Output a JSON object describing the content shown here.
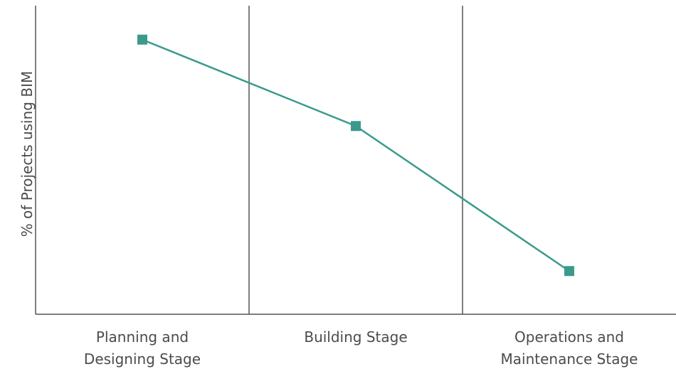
{
  "chart_data": {
    "type": "line",
    "title": "",
    "xlabel": "",
    "ylabel": "% of Projects using BIM",
    "categories": [
      [
        "Planning and",
        "Designing Stage"
      ],
      [
        "Building Stage"
      ],
      [
        "Operations and",
        "Maintenance Stage"
      ]
    ],
    "series": [
      {
        "values": [
          89,
          61,
          14
        ],
        "color": "#3a9a8c",
        "marker": "square"
      }
    ],
    "ylim": [
      0,
      100
    ],
    "y_ticks_shown": false,
    "grid": "vertical separators between categories",
    "legend": "none"
  },
  "style": {
    "axis_color": "#555555",
    "text_color": "#4b4b4b",
    "line_color": "#3a9a8c",
    "marker_fill": "#3a9a8c"
  }
}
